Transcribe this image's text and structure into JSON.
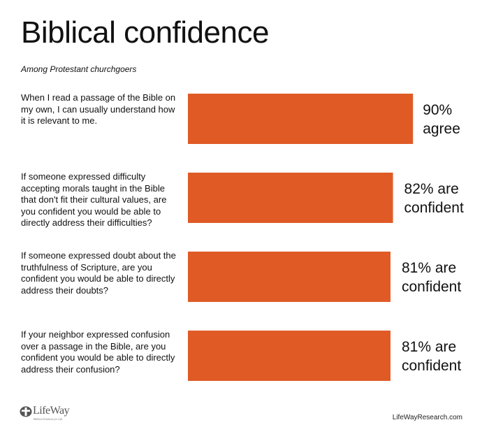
{
  "chart_data": {
    "type": "bar",
    "orientation": "horizontal",
    "title": "Biblical confidence",
    "subtitle": "Among Protestant churchgoers",
    "categories": [
      "When I read a passage of the Bible on my own, I can usually understand how it is relevant to me.",
      "If someone expressed difficulty accepting morals taught in the Bible that don't fit their cultural values, are you confident you would be able to directly address their difficulties?",
      "If someone expressed doubt about the truthfulness of Scripture, are you confident you would be able to directly address their doubts?",
      "If your neighbor expressed confusion over a passage in the Bible, are you confident you would be able to directly address their confusion?"
    ],
    "values": [
      90,
      82,
      81,
      81
    ],
    "unit": "%",
    "data_labels": [
      [
        "90%",
        "agree"
      ],
      [
        "82% are",
        "confident"
      ],
      [
        "81% are",
        "confident"
      ],
      [
        "81% are",
        "confident"
      ]
    ],
    "xlim": [
      0,
      100
    ],
    "grid": false,
    "legend": "none",
    "bar_color": "#E05A26"
  },
  "footer": {
    "logo_text": "LifeWay",
    "logo_tagline": "Biblical Solutions for Life",
    "url": "LifeWayResearch.com"
  }
}
